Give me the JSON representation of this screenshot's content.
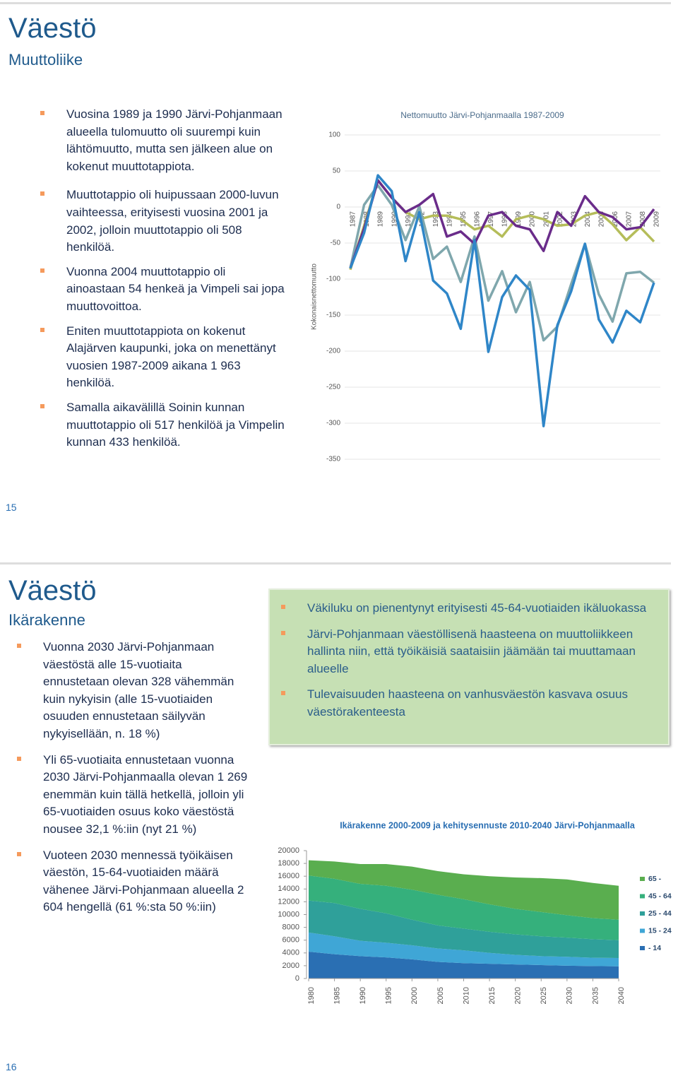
{
  "slides": [
    {
      "title": "Väestö",
      "subtitle": "Muuttoliike",
      "bullets": [
        "Vuosina 1989 ja 1990 Järvi-Pohjanmaan alueella tulomuutto oli suurempi kuin lähtömuutto, mutta sen jälkeen alue on kokenut muuttotappiota.",
        "Muuttotappio oli huipussaan 2000-luvun vaihteessa, erityisesti vuosina 2001 ja 2002, jolloin muuttotappio oli 508 henkilöä.",
        "Vuonna 2004 muuttotappio oli ainoastaan 54 henkeä ja Vimpeli sai jopa muuttovoittoa.",
        "Eniten muuttotappiota on kokenut Alajärven kaupunki, joka on menettänyt vuosien 1987-2009 aikana 1 963 henkilöä.",
        "Samalla aikavälillä Soinin kunnan muuttotappio oli 517 henkilöä ja Vimpelin kunnan 433 henkilöä."
      ],
      "page_number": "15"
    },
    {
      "title": "Väestö",
      "subtitle": "Ikärakenne",
      "bullets": [
        "Vuonna 2030 Järvi-Pohjanmaan väestöstä alle 15-vuotiaita ennustetaan olevan 328 vähemmän kuin nykyisin (alle 15-vuotiaiden osuuden ennustetaan säilyvän nykyisellään, n. 18 %)",
        "Yli 65-vuotiaita ennustetaan vuonna 2030 Järvi-Pohjanmaalla olevan 1 269 enemmän kuin tällä hetkellä, jolloin yli 65-vuotiaiden osuus koko väestöstä nousee 32,1 %:iin (nyt 21 %)",
        "Vuoteen 2030 mennessä työikäisen väestön, 15-64-vuotiaiden määrä vähenee Järvi-Pohjanmaan alueella 2 604 hengellä (61 %:sta 50 %:iin)"
      ],
      "box_bullets": [
        "Väkiluku on pienentynyt erityisesti 45-64-vuotiaiden ikäluokassa",
        "Järvi-Pohjanmaan väestöllisenä haasteena on muuttoliikkeen hallinta niin, että työikäisiä saataisiin jäämään tai muuttamaan alueelle",
        "Tulevaisuuden haasteena on vanhusväestön kasvava osuus väestörakenteesta"
      ],
      "page_number": "16"
    }
  ],
  "chart_data": [
    {
      "type": "line",
      "title": "Nettomuutto Järvi-Pohjanmaalla 1987-2009",
      "y_label": "Kokonaisnettomuutto",
      "categories": [
        "1987",
        "1988",
        "1989",
        "1990",
        "1991",
        "1992",
        "1993",
        "1994",
        "1995",
        "1996",
        "1997",
        "1998",
        "1999",
        "2000",
        "2001",
        "2002",
        "2003",
        "2004",
        "2005",
        "2006",
        "2007",
        "2008",
        "2009"
      ],
      "ylim": [
        -350,
        100
      ],
      "yticks": [
        100,
        50,
        0,
        -50,
        -100,
        -150,
        -200,
        -250,
        -300,
        -350
      ],
      "grid": true,
      "series": [
        {
          "color": "#b5bd5a",
          "values": [
            -87,
            -26,
            37,
            13,
            -7,
            -17,
            -12,
            -12,
            -17,
            -31,
            -26,
            -41,
            -17,
            -12,
            -17,
            -26,
            -24,
            -12,
            -7,
            -24,
            -46,
            -28,
            -48
          ]
        },
        {
          "color": "#7fa7ad",
          "values": [
            -85,
            3,
            30,
            3,
            -46,
            1,
            -72,
            -55,
            -104,
            -41,
            -130,
            -89,
            -146,
            -104,
            -185,
            -166,
            -107,
            -51,
            -121,
            -159,
            -92,
            -90,
            -105
          ]
        },
        {
          "color": "#6a2c8a",
          "values": [
            -85,
            -30,
            37,
            13,
            -7,
            3,
            18,
            -41,
            -34,
            -51,
            -12,
            -7,
            -26,
            -31,
            -61,
            -7,
            -26,
            15,
            -7,
            -14,
            -31,
            -28,
            -3
          ]
        },
        {
          "color": "#2f86c8",
          "values": [
            -85,
            -36,
            44,
            22,
            -75,
            -7,
            -102,
            -120,
            -169,
            -46,
            -201,
            -125,
            -95,
            -115,
            -304,
            -164,
            -117,
            -51,
            -156,
            -188,
            -144,
            -160,
            -105
          ]
        }
      ]
    },
    {
      "type": "area",
      "title": "Ikärakenne 2000-2009 ja kehitysennuste 2010-2040 Järvi-Pohjanmaalla",
      "stacked": true,
      "x": [
        1980,
        1985,
        1990,
        1995,
        2000,
        2005,
        2010,
        2015,
        2020,
        2025,
        2030,
        2035,
        2040
      ],
      "xlim": [
        1980,
        2040
      ],
      "xticks": [
        1980,
        1985,
        1990,
        1995,
        2000,
        2005,
        2010,
        2015,
        2020,
        2025,
        2030,
        2035,
        2040
      ],
      "ylim": [
        0,
        20000
      ],
      "yticks": [
        0,
        2000,
        4000,
        6000,
        8000,
        10000,
        12000,
        14000,
        16000,
        18000,
        20000
      ],
      "series": [
        {
          "name": "- 14",
          "color": "#2a6fb3",
          "values": [
            4200,
            3800,
            3500,
            3300,
            3000,
            2600,
            2400,
            2300,
            2200,
            2100,
            2000,
            1950,
            1900
          ]
        },
        {
          "name": "15 - 24",
          "color": "#3fa6d6",
          "values": [
            3000,
            2800,
            2400,
            2300,
            2200,
            2100,
            2000,
            1700,
            1500,
            1400,
            1400,
            1300,
            1300
          ]
        },
        {
          "name": "25 - 44",
          "color": "#2fa09a",
          "values": [
            5000,
            5200,
            5000,
            4600,
            4000,
            3600,
            3400,
            3300,
            3200,
            3100,
            3000,
            2900,
            2800
          ]
        },
        {
          "name": "45 - 64",
          "color": "#35b07c",
          "values": [
            3900,
            3800,
            3900,
            4300,
            4700,
            4800,
            4600,
            4300,
            4000,
            3800,
            3500,
            3300,
            3200
          ]
        },
        {
          "name": "65 -",
          "color": "#5aae4f",
          "values": [
            2400,
            2700,
            3100,
            3400,
            3600,
            3700,
            3900,
            4400,
            4900,
            5300,
            5600,
            5500,
            5300
          ]
        }
      ]
    }
  ]
}
